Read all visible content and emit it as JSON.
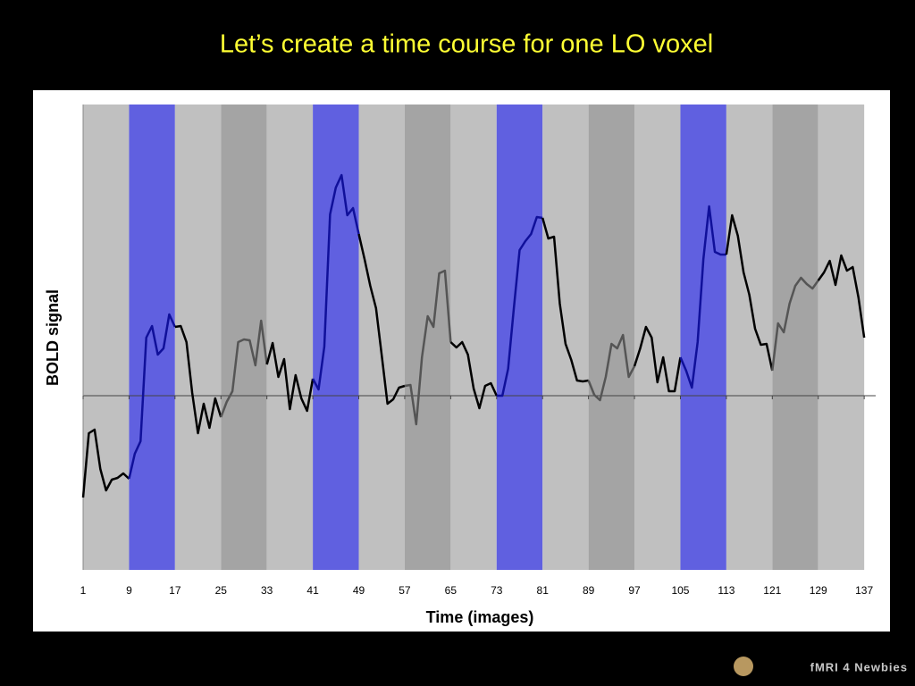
{
  "chart_data": {
    "type": "line",
    "title": "Let’s create a time course for one LO voxel",
    "xlabel": "Time (images)",
    "ylabel": "BOLD signal",
    "x": [
      1,
      2,
      3,
      4,
      5,
      6,
      7,
      8,
      9,
      10,
      11,
      12,
      13,
      14,
      15,
      16,
      17,
      18,
      19,
      20,
      21,
      22,
      23,
      24,
      25,
      26,
      27,
      28,
      29,
      30,
      31,
      32,
      33,
      34,
      35,
      36,
      37,
      38,
      39,
      40,
      41,
      42,
      43,
      44,
      45,
      46,
      47,
      48,
      49,
      50,
      51,
      52,
      53,
      54,
      55,
      56,
      57,
      58,
      59,
      60,
      61,
      62,
      63,
      64,
      65,
      66,
      67,
      68,
      69,
      70,
      71,
      72,
      73,
      74,
      75,
      76,
      77,
      78,
      79,
      80,
      81,
      82,
      83,
      84,
      85,
      86,
      87,
      88,
      89,
      90,
      91,
      92,
      93,
      94,
      95,
      96,
      97,
      98,
      99,
      100,
      101,
      102,
      103,
      104,
      105,
      106,
      107,
      108,
      109,
      110,
      111,
      112,
      113,
      114,
      115,
      116,
      117,
      118,
      119,
      120,
      121,
      122,
      123,
      124,
      125,
      126,
      127,
      128,
      129,
      130,
      131,
      132,
      133,
      134,
      135,
      136,
      137
    ],
    "series": [
      {
        "values": [
          -1.14,
          -0.42,
          -0.38,
          -0.82,
          -1.06,
          -0.94,
          -0.92,
          -0.87,
          -0.93,
          -0.65,
          -0.51,
          0.65,
          0.78,
          0.46,
          0.53,
          0.91,
          0.77,
          0.78,
          0.6,
          0.03,
          -0.42,
          -0.09,
          -0.36,
          -0.03,
          -0.24,
          -0.07,
          0.05,
          0.6,
          0.63,
          0.62,
          0.34,
          0.84,
          0.35,
          0.59,
          0.21,
          0.41,
          -0.15,
          0.23,
          -0.03,
          -0.17,
          0.19,
          0.07,
          0.55,
          2.03,
          2.33,
          2.47,
          2.02,
          2.1,
          1.81,
          1.53,
          1.23,
          0.98,
          0.45,
          -0.09,
          -0.04,
          0.09,
          0.11,
          0.12,
          -0.32,
          0.43,
          0.89,
          0.77,
          1.37,
          1.4,
          0.6,
          0.54,
          0.6,
          0.46,
          0.08,
          -0.14,
          0.11,
          0.14,
          0,
          0,
          0.3,
          0.98,
          1.63,
          1.73,
          1.81,
          2,
          1.99,
          1.76,
          1.78,
          1.03,
          0.58,
          0.4,
          0.17,
          0.16,
          0.17,
          0.01,
          -0.05,
          0.21,
          0.58,
          0.53,
          0.68,
          0.21,
          0.33,
          0.53,
          0.77,
          0.65,
          0.15,
          0.43,
          0.05,
          0.05,
          0.43,
          0.28,
          0.09,
          0.6,
          1.53,
          2.12,
          1.61,
          1.58,
          1.58,
          2.02,
          1.79,
          1.38,
          1.13,
          0.75,
          0.57,
          0.58,
          0.28,
          0.81,
          0.71,
          1.03,
          1.23,
          1.32,
          1.25,
          1.2,
          1.29,
          1.38,
          1.51,
          1.24,
          1.57,
          1.4,
          1.44,
          1.1,
          0.65
        ]
      }
    ],
    "xlim": [
      1,
      139
    ],
    "xticks": [
      1,
      9,
      17,
      25,
      33,
      41,
      49,
      57,
      65,
      73,
      81,
      89,
      97,
      105,
      113,
      121,
      129,
      137
    ],
    "ylim": [
      -1.95,
      3.26
    ],
    "band_colors": [
      "#c0c0c0",
      "#6060e0",
      "#c0c0c0",
      "#a4a4a4",
      "#c0c0c0",
      "#6060e0",
      "#c0c0c0",
      "#a4a4a4",
      "#c0c0c0",
      "#6060e0",
      "#c0c0c0",
      "#a4a4a4",
      "#c0c0c0",
      "#6060e0",
      "#c0c0c0",
      "#a4a4a4",
      "#c0c0c0"
    ],
    "line_colors": [
      "#000000",
      "#10109a",
      "#000000",
      "#555555",
      "#000000",
      "#10109a",
      "#000000",
      "#555555",
      "#000000",
      "#10109a",
      "#000000",
      "#555555",
      "#000000",
      "#10109a",
      "#000000",
      "#555555",
      "#000000"
    ]
  },
  "logo": "fMRI 4 Newbies"
}
